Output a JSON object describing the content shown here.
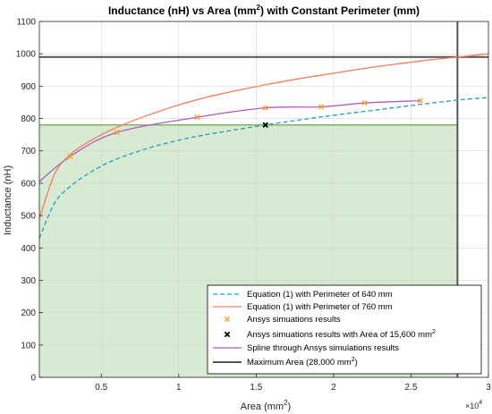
{
  "chart_data": {
    "type": "line",
    "title_parts": [
      "Inductance (nH) vs Area (mm",
      "2",
      ") with Constant Perimeter (mm)"
    ],
    "xlabel_parts": [
      "Area (mm",
      "2",
      ")"
    ],
    "ylabel": "Inductance (nH)",
    "xlim": [
      1000,
      30000
    ],
    "ylim": [
      0,
      1100
    ],
    "x_multiplier_label": [
      "×10",
      "4"
    ],
    "x_ticks": [
      5000,
      10000,
      15000,
      20000,
      25000,
      30000
    ],
    "x_tick_labels": [
      "0.5",
      "1",
      "1.5",
      "2",
      "2.5",
      "3"
    ],
    "y_ticks": [
      0,
      100,
      200,
      300,
      400,
      500,
      600,
      700,
      800,
      900,
      1000,
      1100
    ],
    "y_tick_labels": [
      "0",
      "100",
      "200",
      "300",
      "400",
      "500",
      "600",
      "700",
      "800",
      "900",
      "1000",
      "1100"
    ],
    "grid": true,
    "legend_position": "bottom-right",
    "shaded_region": {
      "x": [
        1000,
        28000
      ],
      "y": [
        0,
        780
      ],
      "color": "#d9ead3",
      "border": "#6aa84f"
    },
    "series": [
      {
        "name": "Equation (1) with Perimeter of 640 mm",
        "style": "dashed",
        "color": "#1f9fbf",
        "x": [
          1000,
          2000,
          3000,
          4000,
          5000,
          6000,
          8000,
          10000,
          12000,
          15600,
          18000,
          20000,
          22000,
          25000,
          28000,
          30000
        ],
        "y": [
          430,
          540,
          590,
          625,
          653,
          675,
          708,
          733,
          752,
          780,
          797,
          810,
          822,
          840,
          857,
          865
        ]
      },
      {
        "name": "Equation (1) with Perimeter of 760 mm",
        "style": "solid",
        "color": "#f07f5a",
        "x": [
          1000,
          2000,
          3000,
          4000,
          5000,
          6000,
          8000,
          10000,
          12000,
          14000,
          16000,
          18000,
          20000,
          22000,
          24000,
          26000,
          28000,
          30000
        ],
        "y": [
          490,
          630,
          688,
          723,
          750,
          773,
          810,
          842,
          868,
          889,
          908,
          925,
          940,
          955,
          968,
          980,
          990,
          1000
        ]
      },
      {
        "name": "Ansys simuations results",
        "style": "marker-x",
        "color": "#f0a030",
        "x": [
          3000,
          6000,
          11200,
          15600,
          19200,
          22000,
          25600
        ],
        "y": [
          683,
          757,
          804,
          833,
          836,
          848,
          855
        ]
      },
      {
        "name_parts": [
          "Ansys simuations results with Area of 15,600 mm",
          "2"
        ],
        "style": "marker-x",
        "color": "#000000",
        "x": [
          15600
        ],
        "y": [
          780
        ]
      },
      {
        "name": "Spline through Ansys simulations results",
        "style": "solid",
        "color": "#b05cc0",
        "x": [
          1000,
          3000,
          6000,
          11200,
          15600,
          19200,
          22000,
          25600
        ],
        "y": [
          605,
          683,
          757,
          804,
          833,
          836,
          848,
          855
        ]
      },
      {
        "name_parts": [
          "Maximum Area (28,000 mm",
          "2",
          ")"
        ],
        "style": "solid-thick",
        "color": "#555555",
        "vertical_x": 28000,
        "horizontal_y": 990
      }
    ]
  }
}
